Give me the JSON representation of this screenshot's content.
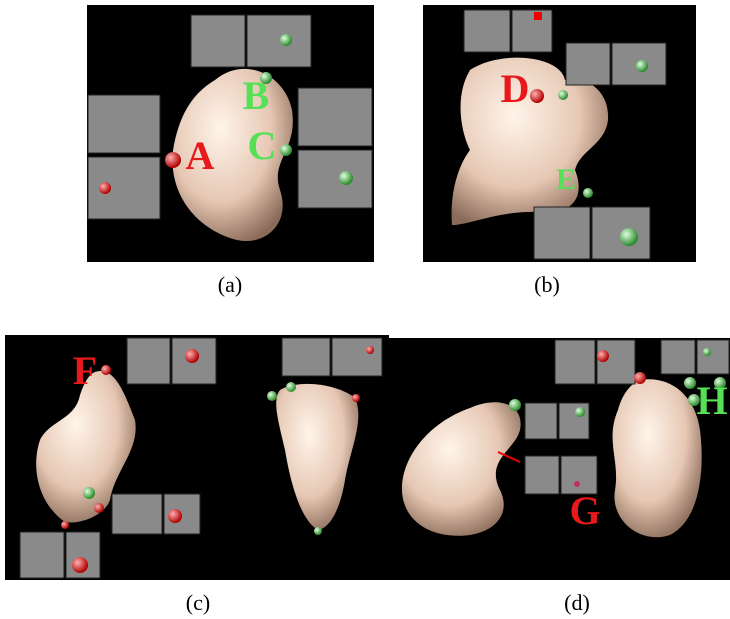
{
  "panels": [
    {
      "caption": "(a)",
      "labels": [
        "A",
        "B",
        "C"
      ]
    },
    {
      "caption": "(b)",
      "labels": [
        "D",
        "E"
      ]
    },
    {
      "caption": "(c)",
      "labels": [
        "F"
      ]
    },
    {
      "caption": "(d)",
      "labels": [
        "G",
        "H"
      ]
    }
  ]
}
